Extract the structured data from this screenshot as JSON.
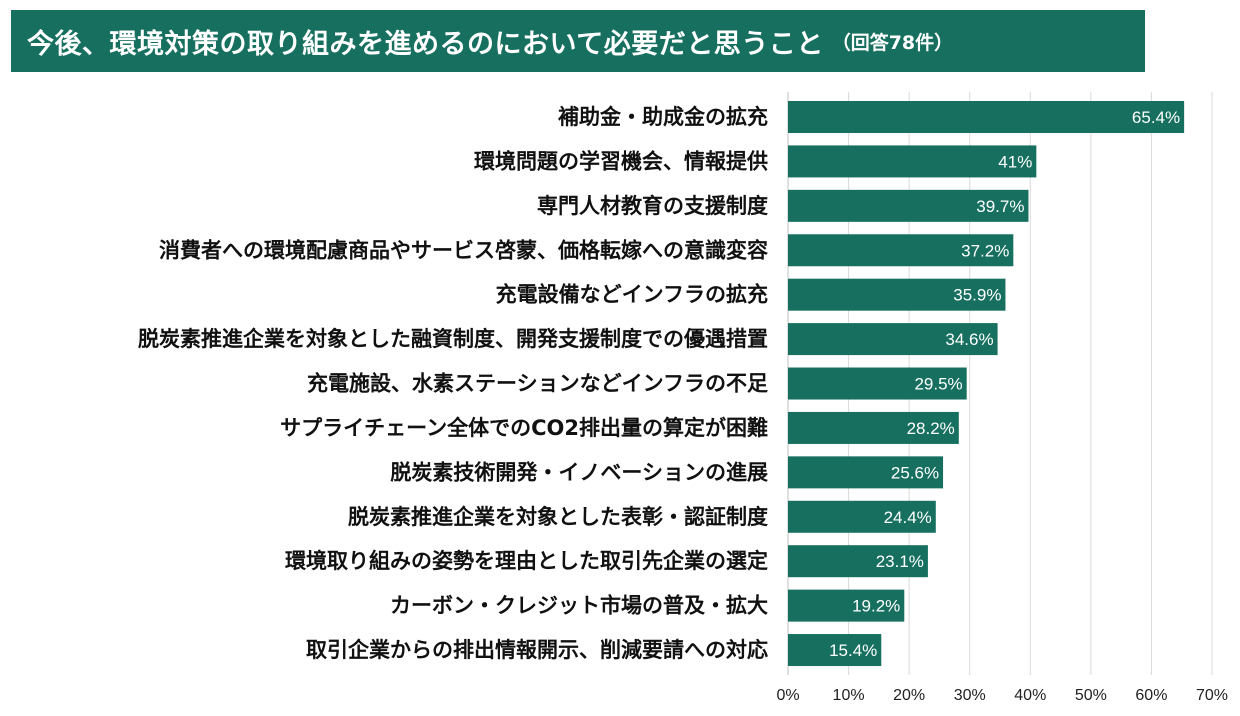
{
  "header": {
    "title": "今後、環境対策の取り組みを進めるのにおいて必要だと思うこと",
    "subtitle": "（回答78件）"
  },
  "colors": {
    "accent": "#17705f",
    "grid": "#d9d9d9"
  },
  "chart_data": {
    "type": "bar",
    "orientation": "horizontal",
    "title": "今後、環境対策の取り組みを進めるのにおいて必要だと思うこと",
    "subtitle": "（回答78件）",
    "xlabel": "",
    "ylabel": "",
    "xlim": [
      0,
      70
    ],
    "x_ticks": [
      "0%",
      "10%",
      "20%",
      "30%",
      "40%",
      "50%",
      "60%",
      "70%"
    ],
    "grid": true,
    "categories": [
      "補助金・助成金の拡充",
      "環境問題の学習機会、情報提供",
      "専門人材教育の支援制度",
      "消費者への環境配慮商品やサービス啓蒙、価格転嫁への意識変容",
      "充電設備などインフラの拡充",
      "脱炭素推進企業を対象とした融資制度、開発支援制度での優遇措置",
      "充電施設、水素ステーションなどインフラの不足",
      "サプライチェーン全体でのCO2排出量の算定が困難",
      "脱炭素技術開発・イノベーションの進展",
      "脱炭素推進企業を対象とした表彰・認証制度",
      "環境取り組みの姿勢を理由とした取引先企業の選定",
      "カーボン・クレジット市場の普及・拡大",
      "取引企業からの排出情報開示、削減要請への対応"
    ],
    "values": [
      65.4,
      41,
      39.7,
      37.2,
      35.9,
      34.6,
      29.5,
      28.2,
      25.6,
      24.4,
      23.1,
      19.2,
      15.4
    ],
    "value_labels": [
      "65.4%",
      "41%",
      "39.7%",
      "37.2%",
      "35.9%",
      "34.6%",
      "29.5%",
      "28.2%",
      "25.6%",
      "24.4%",
      "23.1%",
      "19.2%",
      "15.4%"
    ]
  }
}
